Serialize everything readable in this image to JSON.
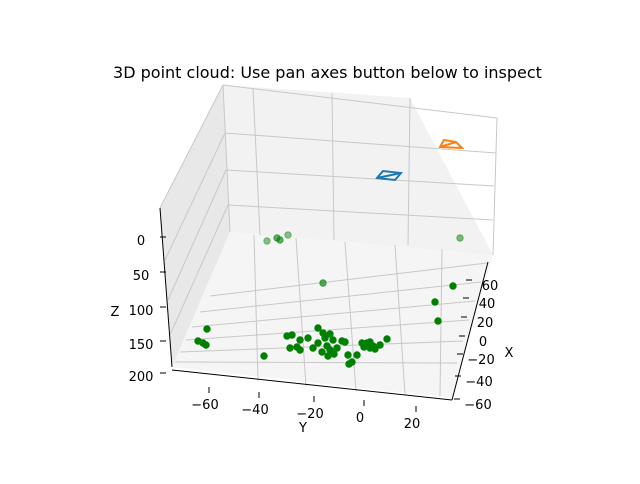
{
  "chart_data": {
    "type": "scatter",
    "title": "3D point cloud: Use pan axes button below to inspect",
    "xlabel": "X",
    "ylabel": "Y",
    "zlabel": "Z",
    "x_ticks": [
      "−60",
      "−40",
      "−20",
      "0",
      "20",
      "40",
      "60"
    ],
    "y_ticks": [
      "−60",
      "−40",
      "−20",
      "0",
      "20"
    ],
    "z_ticks": [
      "0",
      "50",
      "100",
      "150",
      "200"
    ],
    "z_inverted": true,
    "grid": true,
    "colors": {
      "points": "#008000",
      "camera1": "#1f77b4",
      "camera2": "#ff7f0e",
      "pane": "#f2f2f2",
      "grid": "#c8c8c8"
    },
    "series": [
      {
        "marker": "point",
        "projected_points": [
          [
            267,
            241,
            0.45
          ],
          [
            277,
            238,
            0.6
          ],
          [
            280,
            240,
            0.6
          ],
          [
            288,
            235,
            0.45
          ],
          [
            460,
            238,
            0.5
          ],
          [
            323,
            283,
            0.65
          ],
          [
            453,
            286,
            1
          ],
          [
            435,
            302,
            1
          ],
          [
            438,
            321,
            1
          ],
          [
            207,
            329,
            1
          ],
          [
            198,
            341,
            1
          ],
          [
            203,
            343,
            1
          ],
          [
            206,
            345,
            1
          ],
          [
            264,
            356,
            1
          ],
          [
            287,
            336,
            1
          ],
          [
            292,
            335,
            1
          ],
          [
            300,
            340,
            1
          ],
          [
            308,
            338,
            1
          ],
          [
            297,
            347,
            1
          ],
          [
            290,
            348,
            1
          ],
          [
            300,
            350,
            1
          ],
          [
            318,
            328,
            1
          ],
          [
            323,
            333,
            1
          ],
          [
            330,
            334,
            1
          ],
          [
            325,
            338,
            1
          ],
          [
            333,
            340,
            1
          ],
          [
            342,
            341,
            1
          ],
          [
            345,
            342,
            1
          ],
          [
            327,
            346,
            1
          ],
          [
            322,
            352,
            1
          ],
          [
            330,
            350,
            1
          ],
          [
            337,
            348,
            1
          ],
          [
            328,
            356,
            1
          ],
          [
            334,
            354,
            1
          ],
          [
            348,
            355,
            1
          ],
          [
            352,
            362,
            1
          ],
          [
            349,
            364,
            1
          ],
          [
            357,
            355,
            1
          ],
          [
            362,
            343,
            1
          ],
          [
            364,
            347,
            1
          ],
          [
            367,
            343,
            1
          ],
          [
            370,
            342,
            1
          ],
          [
            373,
            346,
            1
          ],
          [
            375,
            349,
            1
          ],
          [
            370,
            348,
            1
          ],
          [
            380,
            345,
            1
          ],
          [
            387,
            339,
            1
          ],
          [
            313,
            348,
            1
          ],
          [
            318,
            343,
            1
          ]
        ]
      },
      {
        "marker": "camera",
        "color_key": "camera1",
        "projected_shape": [
          [
            377,
            178
          ],
          [
            383,
            171
          ],
          [
            401,
            173
          ],
          [
            395,
            180
          ]
        ]
      },
      {
        "marker": "camera",
        "color_key": "camera2",
        "projected_shape": [
          [
            440,
            147
          ],
          [
            444,
            140
          ],
          [
            456,
            142
          ],
          [
            462,
            148
          ]
        ]
      }
    ]
  }
}
